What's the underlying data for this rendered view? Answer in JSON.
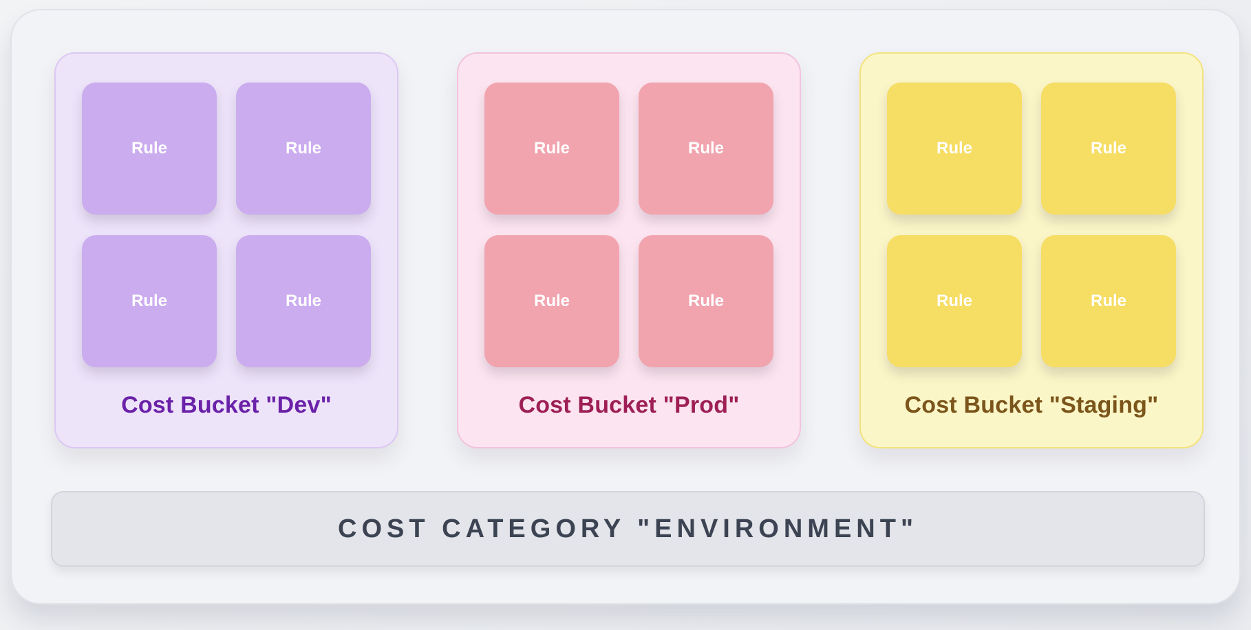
{
  "diagram": {
    "buckets": [
      {
        "id": "dev",
        "label": "Cost Bucket \"Dev\"",
        "rules": [
          "Rule",
          "Rule",
          "Rule",
          "Rule"
        ],
        "colors": {
          "background": "#ede4fa",
          "border": "#dcc8f2",
          "tile": "#cbacef",
          "label_text": "#6b21a8",
          "rule_text": "#ffffff"
        }
      },
      {
        "id": "prod",
        "label": "Cost Bucket \"Prod\"",
        "rules": [
          "Rule",
          "Rule",
          "Rule",
          "Rule"
        ],
        "colors": {
          "background": "#fce5f0",
          "border": "#f2c3de",
          "tile": "#f1a4ae",
          "label_text": "#9d1f55",
          "rule_text": "#ffffff"
        }
      },
      {
        "id": "staging",
        "label": "Cost Bucket \"Staging\"",
        "rules": [
          "Rule",
          "Rule",
          "Rule",
          "Rule"
        ],
        "colors": {
          "background": "#fbf6c7",
          "border": "#f3e37f",
          "tile": "#f6dd64",
          "label_text": "#7b551b",
          "rule_text": "#ffffff"
        }
      }
    ],
    "category_bar": {
      "label": "COST CATEGORY \"ENVIRONMENT\"",
      "colors": {
        "background": "#e3e5ea",
        "border": "#d2d5dc",
        "text": "#3c4352"
      }
    },
    "frame_colors": {
      "page_background": "#eceef1",
      "frame_background": "#f2f3f6",
      "frame_border": "#e0e2e8"
    }
  }
}
